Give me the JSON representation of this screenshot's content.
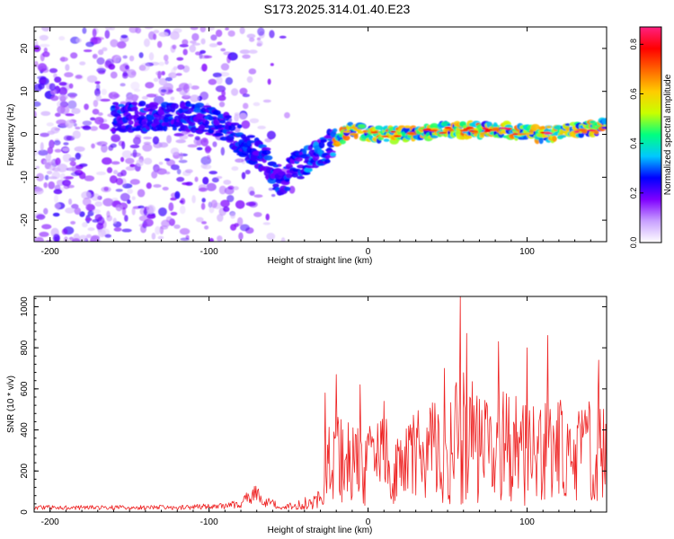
{
  "title": "S173.2025.314.01.40.E23",
  "colors": {
    "line": "#ee2222",
    "axis": "#000000",
    "background": "#ffffff"
  },
  "chart_data": [
    {
      "type": "heatmap",
      "name": "spectrogram",
      "xlabel": "Height of straight line (km)",
      "ylabel": "Frequency (Hz)",
      "xlim": [
        -210,
        150
      ],
      "ylim": [
        -25,
        25
      ],
      "xticks": [
        -200,
        -100,
        0,
        100
      ],
      "yticks": [
        -20,
        -10,
        0,
        10,
        20
      ],
      "colorbar": {
        "label": "Normalized spectral amplitude",
        "range": [
          0,
          0.87
        ],
        "ticks": [
          0.0,
          0.2,
          0.4,
          0.6,
          0.8
        ],
        "colormap": [
          "#ffffff",
          "#c8a0ff",
          "#7f00ff",
          "#0000ff",
          "#00c8ff",
          "#00ff80",
          "#c8ff00",
          "#ffcc00",
          "#ff6600",
          "#ff0000",
          "#ff2080"
        ]
      },
      "ridge": {
        "x": [
          -160,
          -130,
          -110,
          -95,
          -85,
          -75,
          -65,
          -55,
          -48,
          -40,
          -33,
          -28,
          -20,
          -10,
          0,
          20,
          50,
          80,
          110,
          130,
          150
        ],
        "y": [
          4,
          4,
          4,
          3,
          0,
          -3,
          -6,
          -12,
          -8,
          -7,
          -5,
          -4,
          -1,
          1,
          0,
          0,
          1,
          1,
          0,
          1,
          2
        ]
      }
    },
    {
      "type": "line",
      "name": "snr",
      "xlabel": "Height of straight line (km)",
      "ylabel": "SNR (10 * v/v)",
      "xlim": [
        -210,
        150
      ],
      "ylim": [
        0,
        1050
      ],
      "xticks": [
        -200,
        -100,
        0,
        100
      ],
      "yticks": [
        0,
        200,
        400,
        600,
        800,
        1000
      ],
      "envelope": {
        "x": [
          -210,
          -120,
          -90,
          -80,
          -72,
          -65,
          -55,
          -45,
          -35,
          -28,
          -25,
          -20,
          -10,
          0,
          20,
          40,
          55,
          60,
          70,
          85,
          100,
          115,
          130,
          150
        ],
        "mean": [
          22,
          22,
          30,
          45,
          90,
          55,
          25,
          30,
          50,
          110,
          240,
          250,
          240,
          230,
          260,
          290,
          330,
          360,
          320,
          330,
          280,
          300,
          290,
          310
        ],
        "amp": [
          10,
          12,
          15,
          25,
          50,
          30,
          12,
          20,
          40,
          90,
          180,
          220,
          220,
          200,
          230,
          260,
          300,
          350,
          280,
          280,
          250,
          260,
          240,
          260
        ]
      },
      "peaks": [
        {
          "x": -27,
          "y": 580
        },
        {
          "x": -20,
          "y": 670
        },
        {
          "x": -5,
          "y": 620
        },
        {
          "x": 10,
          "y": 540
        },
        {
          "x": 48,
          "y": 700
        },
        {
          "x": 58,
          "y": 1050
        },
        {
          "x": 62,
          "y": 870
        },
        {
          "x": 82,
          "y": 830
        },
        {
          "x": 100,
          "y": 800
        },
        {
          "x": 113,
          "y": 860
        },
        {
          "x": 145,
          "y": 740
        }
      ]
    }
  ]
}
